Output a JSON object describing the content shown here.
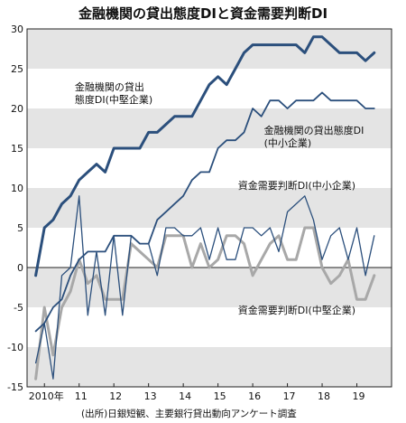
{
  "chart_data": {
    "type": "line",
    "title": "金融機関の貸出態度DIと資金需要判断DI",
    "source": "(出所)日銀短観、主要銀行貸出動向アンケート調査",
    "ylim": [
      -15,
      30
    ],
    "yticks": [
      -15,
      -10,
      -5,
      0,
      5,
      10,
      15,
      20,
      25,
      30
    ],
    "xticks": [
      {
        "label": "2010年",
        "x": 0
      },
      {
        "label": "11",
        "x": 4
      },
      {
        "label": "12",
        "x": 8
      },
      {
        "label": "13",
        "x": 12
      },
      {
        "label": "14",
        "x": 16
      },
      {
        "label": "15",
        "x": 20
      },
      {
        "label": "16",
        "x": 24
      },
      {
        "label": "17",
        "x": 28
      },
      {
        "label": "18",
        "x": 32
      },
      {
        "label": "19",
        "x": 36
      }
    ],
    "xlim": [
      -2,
      40
    ],
    "grid": "alternating bands",
    "colors": {
      "dark_blue": "#2b4f7c",
      "gray": "#a8a8a8",
      "band": "#e4e4e4"
    },
    "series": [
      {
        "name": "金融機関の貸出態度DI(中堅企業)",
        "label_lines": [
          "金融機関の貸出",
          "態度DI(中堅企業)"
        ],
        "color": "dark_blue",
        "width": 3,
        "x": [
          -1,
          0,
          1,
          2,
          3,
          4,
          5,
          6,
          7,
          8,
          9,
          10,
          11,
          12,
          13,
          14,
          15,
          16,
          17,
          18,
          19,
          20,
          21,
          22,
          23,
          24,
          25,
          26,
          27,
          28,
          29,
          30,
          31,
          32,
          33,
          34,
          35,
          36,
          37,
          38
        ],
        "values": [
          -1,
          5,
          6,
          8,
          9,
          11,
          12,
          13,
          12,
          15,
          15,
          15,
          15,
          17,
          17,
          18,
          19,
          19,
          19,
          21,
          23,
          24,
          23,
          25,
          27,
          28,
          28,
          28,
          28,
          28,
          28,
          27,
          29,
          29,
          28,
          27,
          27,
          27,
          26,
          27
        ]
      },
      {
        "name": "金融機関の貸出態度DI(中小企業)",
        "label_lines": [
          "金融機関の貸出態度DI",
          "(中小企業)"
        ],
        "color": "dark_blue",
        "width": 1.8,
        "x": [
          -1,
          0,
          1,
          2,
          3,
          4,
          5,
          6,
          7,
          8,
          9,
          10,
          11,
          12,
          13,
          14,
          15,
          16,
          17,
          18,
          19,
          20,
          21,
          22,
          23,
          24,
          25,
          26,
          27,
          28,
          29,
          30,
          31,
          32,
          33,
          34,
          35,
          36,
          37,
          38
        ],
        "values": [
          -8,
          -7,
          -5,
          -4,
          -1,
          1,
          2,
          2,
          2,
          4,
          4,
          4,
          3,
          3,
          6,
          7,
          8,
          9,
          11,
          12,
          12,
          15,
          16,
          16,
          17,
          20,
          19,
          21,
          21,
          20,
          21,
          21,
          21,
          22,
          21,
          21,
          21,
          21,
          20,
          20
        ]
      },
      {
        "name": "資金需要判断DI(中小企業)",
        "label_lines": [
          "資金需要判断DI(中小企業)"
        ],
        "color": "dark_blue",
        "width": 1.3,
        "x": [
          -1,
          0,
          1,
          2,
          3,
          4,
          5,
          6,
          7,
          8,
          9,
          10,
          11,
          12,
          13,
          14,
          15,
          16,
          17,
          18,
          19,
          20,
          21,
          22,
          23,
          24,
          25,
          26,
          27,
          28,
          29,
          30,
          31,
          32,
          33,
          34,
          35,
          36,
          37,
          38
        ],
        "values": [
          -12,
          -7,
          -14,
          -1,
          0,
          9,
          -6,
          2,
          -6,
          4,
          -6,
          4,
          3,
          3,
          -1,
          5,
          5,
          4,
          4,
          5,
          1,
          5,
          1,
          1,
          5,
          5,
          4,
          5,
          2,
          7,
          8,
          9,
          6,
          1,
          4,
          5,
          1,
          5,
          -1,
          4
        ]
      },
      {
        "name": "資金需要判断DI(中堅企業)",
        "label_lines": [
          "資金需要判断DI(中堅企業)"
        ],
        "color": "gray",
        "width": 3,
        "x": [
          -1,
          0,
          1,
          2,
          3,
          4,
          5,
          6,
          7,
          8,
          9,
          10,
          11,
          12,
          13,
          14,
          15,
          16,
          17,
          18,
          19,
          20,
          21,
          22,
          23,
          24,
          25,
          26,
          27,
          28,
          29,
          30,
          31,
          32,
          33,
          34,
          35,
          36,
          37,
          38
        ],
        "values": [
          -14,
          -5,
          -11,
          -5,
          -3,
          1,
          -2,
          -1,
          -4,
          -4,
          -4,
          3,
          2,
          1,
          0,
          4,
          4,
          4,
          0,
          3,
          0,
          1,
          4,
          4,
          3,
          -1,
          1,
          3,
          4,
          1,
          1,
          5,
          5,
          0,
          -2,
          -1,
          1,
          -4,
          -4,
          -1
        ]
      }
    ]
  }
}
